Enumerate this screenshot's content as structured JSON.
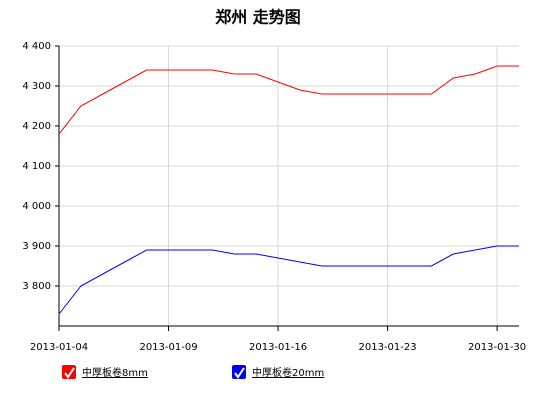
{
  "chart_data": {
    "type": "line",
    "title": "郑州 走势图",
    "categories": [
      "2013-01-04",
      null,
      null,
      null,
      null,
      "2013-01-09",
      null,
      null,
      null,
      null,
      "2013-01-16",
      null,
      null,
      null,
      null,
      "2013-01-23",
      null,
      null,
      null,
      null,
      "2013-01-30",
      null
    ],
    "series": [
      {
        "name": "中厚板卷8mm",
        "color": "#ff0000",
        "values": [
          4180,
          4250,
          4280,
          4310,
          4340,
          4340,
          4340,
          4340,
          4330,
          4330,
          4310,
          4290,
          4280,
          4280,
          4280,
          4280,
          4280,
          4280,
          4320,
          4330,
          4350,
          4350
        ]
      },
      {
        "name": "中厚板卷20mm",
        "color": "#0000ff",
        "values": [
          3730,
          3800,
          3830,
          3860,
          3890,
          3890,
          3890,
          3890,
          3880,
          3880,
          3870,
          3860,
          3850,
          3850,
          3850,
          3850,
          3850,
          3850,
          3880,
          3890,
          3900,
          3900
        ]
      }
    ],
    "ylim": [
      3700,
      4400
    ],
    "yticks": [
      {
        "value": 3800,
        "label": "3 800"
      },
      {
        "value": 3900,
        "label": "3 900"
      },
      {
        "value": 4000,
        "label": "4 000"
      },
      {
        "value": 4100,
        "label": "4 100"
      },
      {
        "value": 4200,
        "label": "4 200"
      },
      {
        "value": 4300,
        "label": "4 300"
      },
      {
        "value": 4400,
        "label": "4 400"
      }
    ],
    "grid": true
  }
}
